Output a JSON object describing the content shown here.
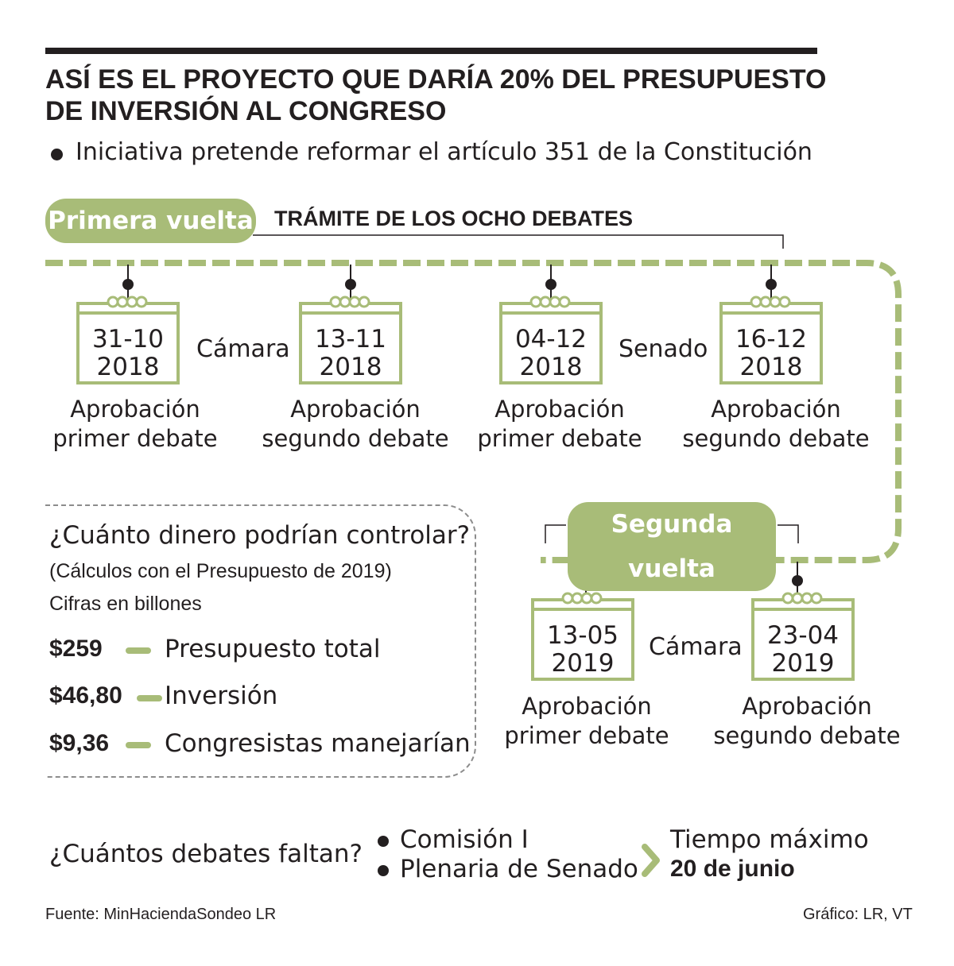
{
  "title_line1": "ASÍ ES EL PROYECTO QUE DARÍA 20% DEL PRESUPUESTO",
  "title_line2": "DE INVERSIÓN AL CONGRESO",
  "subtitle": "Iniciativa pretende reformar el artículo 351 de la Constitución",
  "first_round": {
    "label": "Primera vuelta",
    "process_title": "TRÁMITE DE LOS OCHO DEBATES",
    "chamber_1": "Cámara",
    "chamber_2": "Senado",
    "events": [
      {
        "date": "31-10",
        "year": "2018",
        "desc1": "Aprobación",
        "desc2": "primer debate"
      },
      {
        "date": "13-11",
        "year": "2018",
        "desc1": "Aprobación",
        "desc2": "segundo debate"
      },
      {
        "date": "04-12",
        "year": "2018",
        "desc1": "Aprobación",
        "desc2": "primer debate"
      },
      {
        "date": "16-12",
        "year": "2018",
        "desc1": "Aprobación",
        "desc2": "segundo debate"
      }
    ]
  },
  "second_round": {
    "label": "Segunda vuelta",
    "chamber": "Cámara",
    "events": [
      {
        "date": "13-05",
        "year": "2019",
        "desc1": "Aprobación",
        "desc2": "primer debate"
      },
      {
        "date": "23-04",
        "year": "2019",
        "desc1": "Aprobación",
        "desc2": "segundo debate"
      }
    ]
  },
  "money": {
    "question": "¿Cuánto dinero podrían controlar?",
    "note": "(Cálculos con el Presupuesto de 2019)",
    "unit": "Cifras en billones",
    "items": [
      {
        "amount": "$259",
        "label": "Presupuesto total"
      },
      {
        "amount": "$46,80",
        "label": "Inversión"
      },
      {
        "amount": "$9,36",
        "label": "Congresistas manejarían"
      }
    ]
  },
  "remaining": {
    "question": "¿Cuántos debates faltan?",
    "items": [
      "Comisión I",
      "Plenaria de Senado"
    ],
    "deadline_label": "Tiempo máximo",
    "deadline_value": "20 de junio"
  },
  "footer": {
    "source": "Fuente: MinHaciendaSondeo LR",
    "credit": "Gráfico: LR, VT"
  },
  "colors": {
    "accent": "#a8bc78",
    "text": "#231f20",
    "dashed_border": "#8c8c8c"
  },
  "icons": [
    "calendar-icon",
    "bullet-icon",
    "chevron-right-icon"
  ]
}
